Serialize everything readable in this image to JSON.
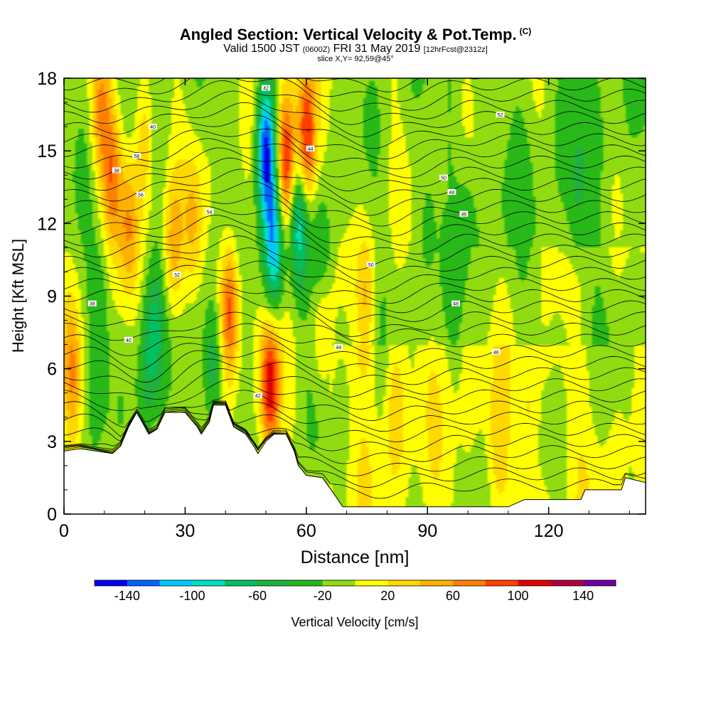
{
  "title": {
    "main": "Angled Section: Vertical Velocity & Pot.Temp.",
    "unit_tag": "(C)",
    "valid_prefix": "Valid 1500 JST",
    "valid_z": "(0600Z)",
    "valid_date": "FRI 31 May 2019",
    "fcst": "[12hrFcst@2312z]",
    "slice": "slice X,Y= 92,59@45°"
  },
  "chart_data": {
    "type": "heatmap",
    "xlabel": "Distance [nm]",
    "ylabel": "Height [Kft MSL]",
    "xlim": [
      0,
      144
    ],
    "ylim": [
      0,
      18
    ],
    "x_ticks": [
      0,
      30,
      60,
      90,
      120
    ],
    "y_ticks": [
      0,
      3,
      6,
      9,
      12,
      15,
      18
    ],
    "colorbar": {
      "label": "Vertical Velocity [cm/s]",
      "tick_labels": [
        "-140",
        "-100",
        "-60",
        "-20",
        "20",
        "60",
        "100",
        "140"
      ],
      "boundaries": [
        -160,
        -140,
        -120,
        -100,
        -80,
        -60,
        -40,
        -20,
        0,
        20,
        40,
        60,
        80,
        100,
        120,
        140,
        160
      ],
      "colors": [
        "#0000ee",
        "#0064ff",
        "#00c8ff",
        "#00e0c0",
        "#00c060",
        "#20b040",
        "#28b818",
        "#90dc10",
        "#ffff00",
        "#ffd800",
        "#ffb000",
        "#ff8000",
        "#ff4000",
        "#e00000",
        "#b00040",
        "#7000a0"
      ]
    },
    "terrain_kft": [
      [
        0,
        2.6
      ],
      [
        4,
        2.7
      ],
      [
        8,
        2.6
      ],
      [
        12,
        2.5
      ],
      [
        14,
        2.8
      ],
      [
        16,
        3.6
      ],
      [
        18,
        4.2
      ],
      [
        20,
        3.6
      ],
      [
        21,
        3.3
      ],
      [
        23,
        3.5
      ],
      [
        25,
        4.2
      ],
      [
        30,
        4.2
      ],
      [
        33,
        3.6
      ],
      [
        34,
        3.3
      ],
      [
        36,
        3.8
      ],
      [
        37,
        4.5
      ],
      [
        40,
        4.5
      ],
      [
        42,
        3.6
      ],
      [
        45,
        3.3
      ],
      [
        47,
        2.8
      ],
      [
        48,
        2.5
      ],
      [
        50,
        3.0
      ],
      [
        52,
        3.3
      ],
      [
        55,
        3.3
      ],
      [
        57,
        2.6
      ],
      [
        58,
        2.0
      ],
      [
        60,
        1.6
      ],
      [
        64,
        1.5
      ],
      [
        67,
        0.8
      ],
      [
        69,
        0.3
      ],
      [
        110,
        0.3
      ],
      [
        114,
        0.6
      ],
      [
        128,
        0.6
      ],
      [
        129,
        1.0
      ],
      [
        138,
        1.0
      ],
      [
        139,
        1.5
      ],
      [
        144,
        1.3
      ]
    ],
    "updrafts": [
      {
        "x": 2,
        "y": 5.8,
        "w": 60
      },
      {
        "x": 9,
        "y": 16.5,
        "w": 60
      },
      {
        "x": 12,
        "y": 14.0,
        "w": 75
      },
      {
        "x": 16,
        "y": 12.0,
        "w": 60
      },
      {
        "x": 20,
        "y": 15.5,
        "w": 45
      },
      {
        "x": 27,
        "y": 11.0,
        "w": 55
      },
      {
        "x": 32,
        "y": 12.0,
        "w": 45
      },
      {
        "x": 41,
        "y": 8.5,
        "w": 110
      },
      {
        "x": 51,
        "y": 5.2,
        "w": 125
      },
      {
        "x": 55,
        "y": 14.5,
        "w": 120
      },
      {
        "x": 60,
        "y": 15.5,
        "w": 125
      },
      {
        "x": 64,
        "y": 8.5,
        "w": 70
      },
      {
        "x": 75,
        "y": 9.0,
        "w": 45
      },
      {
        "x": 82,
        "y": 4.5,
        "w": 35
      },
      {
        "x": 107,
        "y": 2.5,
        "w": 30
      },
      {
        "x": 115,
        "y": 4.2,
        "w": 30
      }
    ],
    "downdrafts": [
      {
        "x": 20,
        "y": 5.0,
        "w": -35
      },
      {
        "x": 22,
        "y": 7.5,
        "w": -50
      },
      {
        "x": 37,
        "y": 6.0,
        "w": -60
      },
      {
        "x": 50,
        "y": 15.0,
        "w": -140
      },
      {
        "x": 52,
        "y": 11.0,
        "w": -105
      },
      {
        "x": 58,
        "y": 12.0,
        "w": -80
      },
      {
        "x": 64,
        "y": 10.0,
        "w": -80
      },
      {
        "x": 90,
        "y": 12.0,
        "w": -25
      },
      {
        "x": 100,
        "y": 12.5,
        "w": -20
      },
      {
        "x": 127,
        "y": 13.0,
        "w": -25
      },
      {
        "x": 9,
        "y": 8.7,
        "w": -30
      }
    ],
    "isentrope_labels": [
      "38",
      "40",
      "42",
      "44",
      "46",
      "48",
      "50",
      "52",
      "54",
      "56",
      "58"
    ]
  }
}
